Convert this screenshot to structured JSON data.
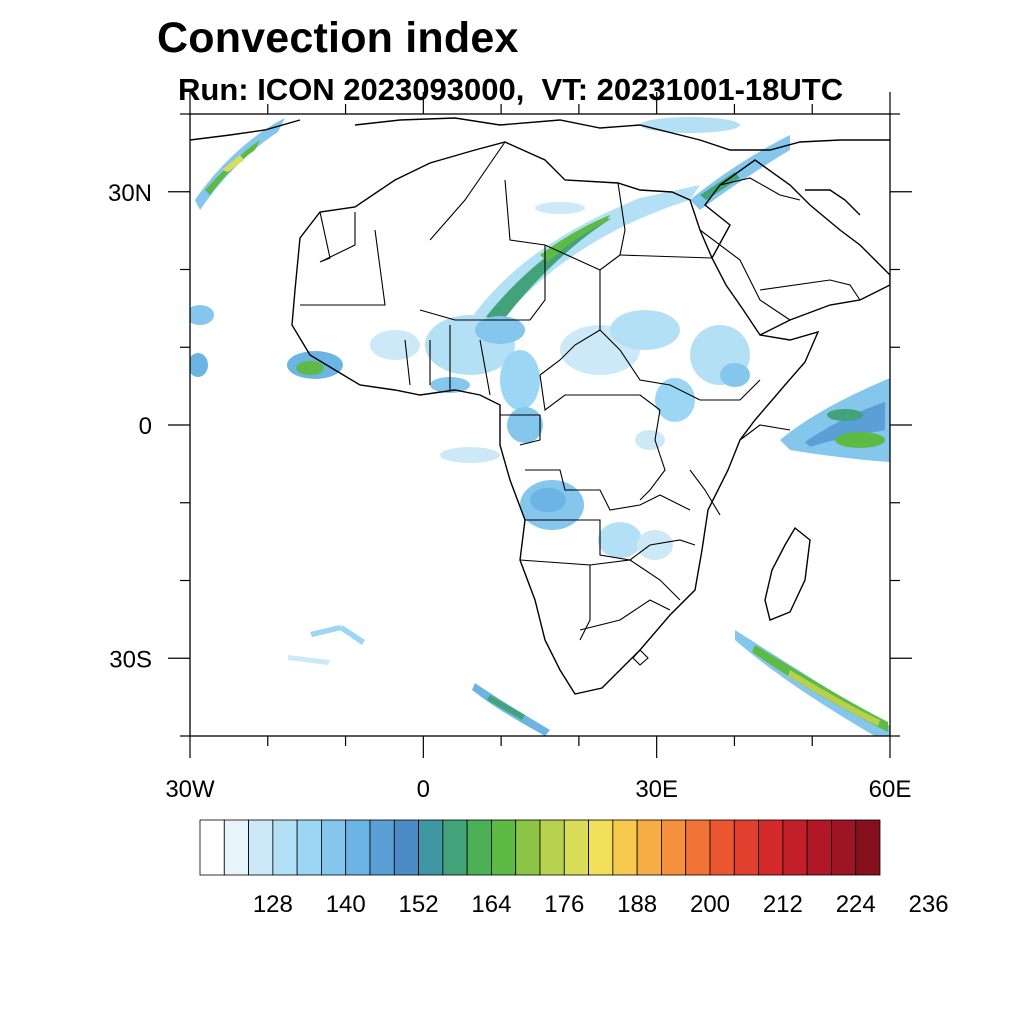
{
  "title": "Convection index",
  "subtitle": "Run: ICON 2023093000,  VT: 20231001-18UTC",
  "map": {
    "lon_range": [
      -30,
      60
    ],
    "lat_range": [
      -40,
      40
    ],
    "lon_ticks": [
      {
        "value": -30,
        "label": "30W"
      },
      {
        "value": 0,
        "label": "0"
      },
      {
        "value": 30,
        "label": "30E"
      },
      {
        "value": 60,
        "label": "60E"
      }
    ],
    "lat_ticks": [
      {
        "value": 30,
        "label": "30N"
      },
      {
        "value": 0,
        "label": "0"
      },
      {
        "value": -30,
        "label": "30S"
      }
    ]
  },
  "colorbar": {
    "colors": [
      "#ffffff",
      "#e8f4fb",
      "#cde9f7",
      "#b4e0f6",
      "#9bd6f4",
      "#84c6ec",
      "#6cb4e3",
      "#5a9fd6",
      "#4b8cc6",
      "#3f97a3",
      "#42a37a",
      "#4cb057",
      "#5dbb45",
      "#8cc545",
      "#b7d04d",
      "#dadd57",
      "#f2e05a",
      "#f8c94f",
      "#f7ad45",
      "#f5913d",
      "#f17335",
      "#ea5630",
      "#e0402d",
      "#d42a2b",
      "#c31f2a",
      "#b11827",
      "#9d1424",
      "#86101d"
    ],
    "labels": [
      "128",
      "140",
      "152",
      "164",
      "176",
      "188",
      "200",
      "212",
      "224",
      "236"
    ]
  },
  "convection_regions": [
    {
      "lon": -20,
      "lat": 33,
      "value": 170
    },
    {
      "lon": 12,
      "lat": 22,
      "value": 168
    },
    {
      "lon": 38,
      "lat": 31,
      "value": 160
    },
    {
      "lon": -15,
      "lat": 7,
      "value": 165
    },
    {
      "lon": 5,
      "lat": 9,
      "value": 150
    },
    {
      "lon": 35,
      "lat": 10,
      "value": 145
    },
    {
      "lon": 16,
      "lat": -9,
      "value": 150
    },
    {
      "lon": 55,
      "lat": 0,
      "value": 170
    },
    {
      "lon": 50,
      "lat": -35,
      "value": 175
    },
    {
      "lon": 12,
      "lat": -37,
      "value": 150
    },
    {
      "lon": -15,
      "lat": -29,
      "value": 130
    }
  ]
}
